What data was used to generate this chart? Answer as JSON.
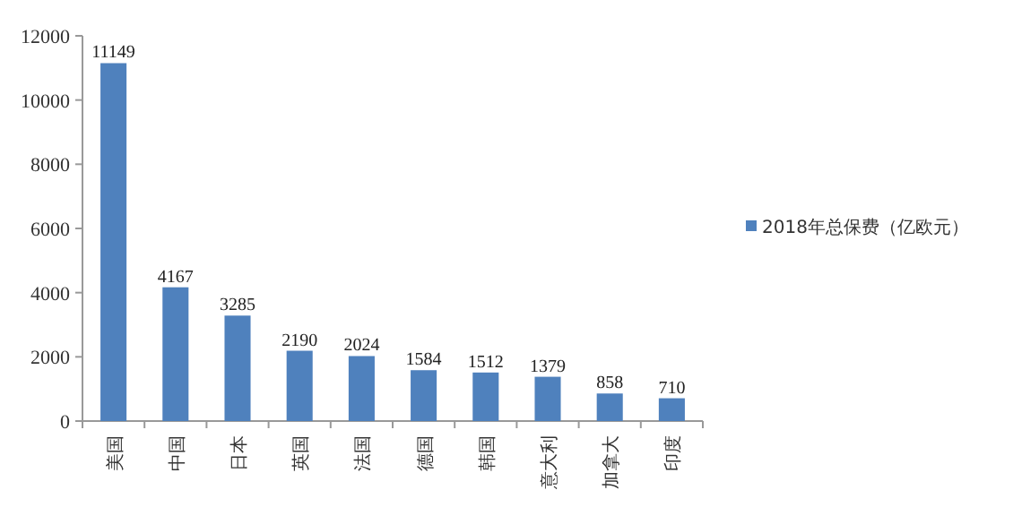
{
  "chart_data": {
    "type": "bar",
    "categories": [
      "美国",
      "中国",
      "日本",
      "英国",
      "法国",
      "德国",
      "韩国",
      "意大利",
      "加拿大",
      "印度"
    ],
    "series": [
      {
        "name": "2018年总保费（亿欧元）",
        "color": "#4f81bd",
        "values": [
          11149,
          4167,
          3285,
          2190,
          2024,
          1584,
          1512,
          1379,
          858,
          710
        ]
      }
    ],
    "ylim": [
      0,
      12000
    ],
    "yticks": [
      0,
      2000,
      4000,
      6000,
      8000,
      10000,
      12000
    ],
    "data_labels": true,
    "legend": "right",
    "grid": false
  }
}
